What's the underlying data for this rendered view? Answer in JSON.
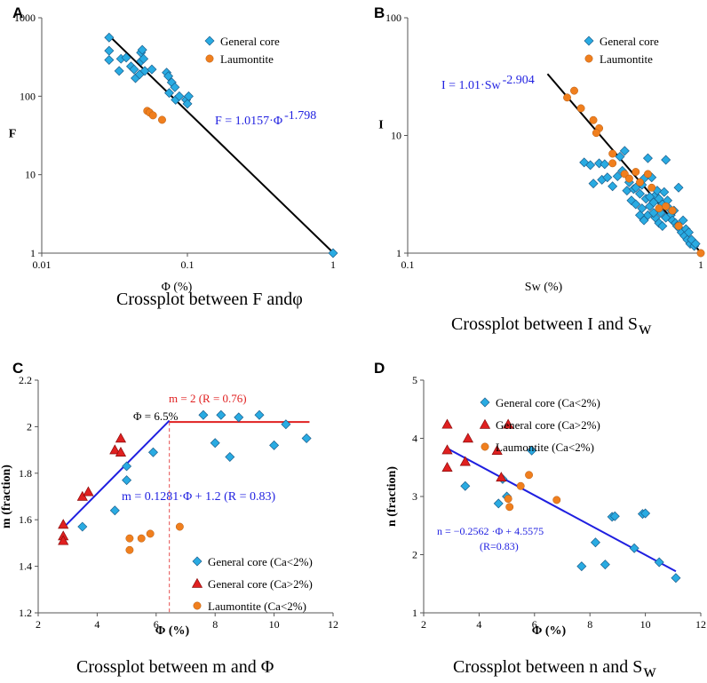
{
  "colors": {
    "general": "#29abe2",
    "general_stroke": "#1b5e8c",
    "laumontite": "#f07f1e",
    "laumontite_stroke": "#b55a10",
    "triangle": "#e02020",
    "triangle_stroke": "#8a0b0b",
    "fit_blue": "#1f1fe0",
    "fit_red": "#e02020",
    "fit_black": "#000000",
    "dashed": "#e02020"
  },
  "chart_data": [
    {
      "id": "A",
      "type": "scatter",
      "panel_letter": "A",
      "caption": "Crossplot between F andφ",
      "xscale": "log",
      "yscale": "log",
      "xlim": [
        0.01,
        1
      ],
      "ylim": [
        1,
        1000
      ],
      "xlabel": "Φ (%)",
      "ylabel": "F",
      "xticks": [
        0.01,
        0.1,
        1
      ],
      "xtick_labels": [
        "0.01",
        "0.1",
        "1"
      ],
      "yticks": [
        1,
        10,
        100,
        1000
      ],
      "ytick_labels": [
        "1",
        "10",
        "100",
        "1000"
      ],
      "series": [
        {
          "name": "General core",
          "marker": "diamond",
          "points": [
            [
              0.029,
              560
            ],
            [
              0.029,
              380
            ],
            [
              0.029,
              290
            ],
            [
              0.035,
              300
            ],
            [
              0.034,
              210
            ],
            [
              0.038,
              310
            ],
            [
              0.041,
              240
            ],
            [
              0.043,
              220
            ],
            [
              0.044,
              170
            ],
            [
              0.047,
              190
            ],
            [
              0.048,
              360
            ],
            [
              0.049,
              390
            ],
            [
              0.048,
              280
            ],
            [
              0.05,
              300
            ],
            [
              0.051,
              210
            ],
            [
              0.057,
              220
            ],
            [
              0.072,
              200
            ],
            [
              0.074,
              180
            ],
            [
              0.078,
              150
            ],
            [
              0.075,
              110
            ],
            [
              0.082,
              130
            ],
            [
              0.083,
              90
            ],
            [
              0.088,
              100
            ],
            [
              0.098,
              90
            ],
            [
              0.1,
              80
            ],
            [
              0.102,
              100
            ],
            [
              1.0,
              1.0
            ]
          ]
        },
        {
          "name": "Laumontite",
          "marker": "circle",
          "points": [
            [
              0.053,
              65
            ],
            [
              0.055,
              62
            ],
            [
              0.058,
              57
            ],
            [
              0.067,
              50
            ]
          ]
        }
      ],
      "fit_lines": [
        {
          "label": "F = 1.0157·Φ",
          "sup": "-1.798",
          "a": 1.0157,
          "b": -1.798,
          "x_range": [
            0.029,
            1.0
          ]
        }
      ],
      "legend": [
        "General core",
        "Laumontite"
      ]
    },
    {
      "id": "B",
      "type": "scatter",
      "panel_letter": "B",
      "caption": "Crossplot between I and S",
      "caption_sub": "w",
      "xscale": "log",
      "yscale": "log",
      "xlim": [
        0.1,
        1
      ],
      "ylim": [
        1,
        100
      ],
      "xlabel": "Sw (%)",
      "ylabel": "I",
      "xticks": [
        0.1,
        1
      ],
      "xtick_labels": [
        "0.1",
        "1"
      ],
      "yticks": [
        1,
        10,
        100
      ],
      "ytick_labels": [
        "1",
        "10",
        "100"
      ],
      "series": [
        {
          "name": "General core",
          "marker": "diamond",
          "points": [
            [
              0.4,
              5.9
            ],
            [
              0.42,
              5.6
            ],
            [
              0.45,
              5.8
            ],
            [
              0.47,
              5.7
            ],
            [
              0.43,
              3.9
            ],
            [
              0.46,
              4.2
            ],
            [
              0.48,
              4.4
            ],
            [
              0.5,
              3.7
            ],
            [
              0.52,
              4.5
            ],
            [
              0.53,
              6.6
            ],
            [
              0.55,
              7.4
            ],
            [
              0.54,
              5.0
            ],
            [
              0.57,
              4.0
            ],
            [
              0.56,
              3.4
            ],
            [
              0.58,
              2.8
            ],
            [
              0.6,
              2.6
            ],
            [
              0.59,
              3.5
            ],
            [
              0.62,
              3.2
            ],
            [
              0.63,
              3.8
            ],
            [
              0.64,
              4.3
            ],
            [
              0.66,
              6.4
            ],
            [
              0.68,
              4.4
            ],
            [
              0.65,
              2.9
            ],
            [
              0.67,
              2.5
            ],
            [
              0.66,
              2.1
            ],
            [
              0.69,
              2.7
            ],
            [
              0.7,
              3.1
            ],
            [
              0.71,
              3.4
            ],
            [
              0.72,
              2.9
            ],
            [
              0.73,
              2.2
            ],
            [
              0.74,
              2.6
            ],
            [
              0.75,
              3.3
            ],
            [
              0.76,
              6.2
            ],
            [
              0.77,
              2.8
            ],
            [
              0.78,
              2.4
            ],
            [
              0.79,
              2.1
            ],
            [
              0.8,
              1.9
            ],
            [
              0.81,
              2.3
            ],
            [
              0.82,
              1.8
            ],
            [
              0.83,
              1.7
            ],
            [
              0.84,
              3.6
            ],
            [
              0.85,
              1.6
            ],
            [
              0.86,
              1.5
            ],
            [
              0.87,
              1.9
            ],
            [
              0.88,
              1.4
            ],
            [
              0.89,
              1.6
            ],
            [
              0.9,
              1.3
            ],
            [
              0.91,
              1.5
            ],
            [
              0.92,
              1.2
            ],
            [
              0.93,
              1.3
            ],
            [
              0.95,
              1.15
            ],
            [
              0.96,
              1.2
            ],
            [
              0.62,
              2.1
            ],
            [
              0.64,
              1.9
            ],
            [
              0.7,
              2.0
            ],
            [
              0.72,
              1.8
            ],
            [
              0.74,
              1.7
            ],
            [
              0.76,
              2.0
            ],
            [
              0.6,
              3.6
            ],
            [
              0.63,
              2.4
            ],
            [
              0.67,
              3.0
            ],
            [
              0.69,
              2.2
            ]
          ]
        },
        {
          "name": "Laumontite",
          "marker": "circle",
          "points": [
            [
              0.35,
              21
            ],
            [
              0.37,
              24
            ],
            [
              0.39,
              17
            ],
            [
              0.43,
              13.5
            ],
            [
              0.45,
              11.5
            ],
            [
              0.44,
              10.5
            ],
            [
              0.5,
              7.0
            ],
            [
              0.5,
              5.8
            ],
            [
              0.55,
              4.7
            ],
            [
              0.57,
              4.3
            ],
            [
              0.6,
              4.9
            ],
            [
              0.62,
              4.0
            ],
            [
              0.66,
              4.7
            ],
            [
              0.68,
              3.6
            ],
            [
              0.72,
              2.4
            ],
            [
              0.76,
              2.5
            ],
            [
              0.8,
              2.3
            ],
            [
              0.84,
              1.7
            ],
            [
              1.0,
              1.0
            ]
          ]
        }
      ],
      "fit_lines": [
        {
          "label": "I = 1.01·Sw",
          "sup": "-2.904",
          "a": 1.01,
          "b": -2.904,
          "x_range": [
            0.3,
            1.0
          ]
        }
      ],
      "legend": [
        "General core",
        "Laumontite"
      ]
    },
    {
      "id": "C",
      "type": "scatter",
      "panel_letter": "C",
      "caption": "Crossplot between m and Φ",
      "xscale": "linear",
      "yscale": "linear",
      "xlim": [
        2,
        12
      ],
      "ylim": [
        1.2,
        2.2
      ],
      "xlabel": "Φ (%)",
      "ylabel": "m (fraction)",
      "xticks": [
        2,
        4,
        6,
        8,
        10,
        12
      ],
      "xtick_labels": [
        "2",
        "4",
        "6",
        "8",
        "10",
        "12"
      ],
      "yticks": [
        1.2,
        1.4,
        1.6,
        1.8,
        2.0,
        2.2
      ],
      "ytick_labels": [
        "1.2",
        "1.4",
        "1.6",
        "1.8",
        "2",
        "2.2"
      ],
      "series": [
        {
          "name": "General core (Ca<2%)",
          "marker": "diamond",
          "points": [
            [
              3.5,
              1.57
            ],
            [
              4.6,
              1.64
            ],
            [
              5.0,
              1.77
            ],
            [
              5.0,
              1.83
            ],
            [
              5.9,
              1.89
            ],
            [
              7.6,
              2.05
            ],
            [
              8.0,
              1.93
            ],
            [
              8.2,
              2.05
            ],
            [
              8.5,
              1.87
            ],
            [
              8.8,
              2.04
            ],
            [
              9.5,
              2.05
            ],
            [
              10.0,
              1.92
            ],
            [
              10.4,
              2.01
            ],
            [
              11.1,
              1.95
            ]
          ]
        },
        {
          "name": "General core (Ca>2%)",
          "marker": "triangle",
          "points": [
            [
              2.85,
              1.58
            ],
            [
              2.85,
              1.53
            ],
            [
              2.85,
              1.51
            ],
            [
              3.5,
              1.7
            ],
            [
              3.7,
              1.72
            ],
            [
              4.6,
              1.9
            ],
            [
              4.8,
              1.95
            ],
            [
              4.8,
              1.89
            ]
          ]
        },
        {
          "name": "Laumontite (Ca<2%)",
          "marker": "circle",
          "points": [
            [
              5.1,
              1.52
            ],
            [
              5.1,
              1.47
            ],
            [
              5.5,
              1.52
            ],
            [
              5.8,
              1.54
            ],
            [
              6.8,
              1.57
            ]
          ]
        }
      ],
      "fit_lines": [
        {
          "label": "m = 0.1281·Φ + 1.2  (R = 0.83)",
          "slope": 0.1281,
          "intercept": 1.2,
          "x_range": [
            2.85,
            6.45
          ],
          "color": "blue"
        },
        {
          "label": "m = 2  (R = 0.76)",
          "slope": 0,
          "intercept": 2.02,
          "x_range": [
            6.45,
            11.2
          ],
          "color": "red"
        }
      ],
      "annotations": {
        "breakpoint_label": "Φ = 6.5%",
        "breakpoint_x": 6.45
      },
      "legend": [
        "General core (Ca<2%)",
        "General core (Ca>2%)",
        "Laumontite (Ca<2%)"
      ]
    },
    {
      "id": "D",
      "type": "scatter",
      "panel_letter": "D",
      "caption": "Crossplot between n and S",
      "caption_sub": "w",
      "xscale": "linear",
      "yscale": "linear",
      "xlim": [
        2,
        12
      ],
      "ylim": [
        1,
        5
      ],
      "xlabel": "Φ (%)",
      "ylabel": "n (fraction)",
      "xticks": [
        2,
        4,
        6,
        8,
        10,
        12
      ],
      "xtick_labels": [
        "2",
        "4",
        "6",
        "8",
        "10",
        "12"
      ],
      "yticks": [
        1,
        2,
        3,
        4,
        5
      ],
      "ytick_labels": [
        "1",
        "2",
        "3",
        "4",
        "5"
      ],
      "series": [
        {
          "name": "General core (Ca<2%)",
          "marker": "diamond",
          "points": [
            [
              3.5,
              3.18
            ],
            [
              4.7,
              2.88
            ],
            [
              4.85,
              3.3
            ],
            [
              5.0,
              3.0
            ],
            [
              5.9,
              3.79
            ],
            [
              7.7,
              1.8
            ],
            [
              8.2,
              2.21
            ],
            [
              8.55,
              1.83
            ],
            [
              8.8,
              2.65
            ],
            [
              8.9,
              2.66
            ],
            [
              9.6,
              2.11
            ],
            [
              9.9,
              2.7
            ],
            [
              10.0,
              2.71
            ],
            [
              10.5,
              1.87
            ],
            [
              11.1,
              1.6
            ]
          ]
        },
        {
          "name": "General core (Ca>2%)",
          "marker": "triangle",
          "points": [
            [
              2.85,
              4.24
            ],
            [
              2.85,
              3.8
            ],
            [
              2.85,
              3.5
            ],
            [
              3.5,
              3.6
            ],
            [
              3.6,
              4.0
            ],
            [
              4.65,
              3.79
            ],
            [
              4.8,
              3.33
            ],
            [
              5.05,
              4.24
            ]
          ]
        },
        {
          "name": "Laumontite (Ca<2%)",
          "marker": "circle",
          "points": [
            [
              5.05,
              2.96
            ],
            [
              5.1,
              2.82
            ],
            [
              5.5,
              3.18
            ],
            [
              5.8,
              3.37
            ],
            [
              6.8,
              2.94
            ]
          ]
        }
      ],
      "fit_lines": [
        {
          "label": "n = −0.2562 ·Φ + 4.5575",
          "label2": "(R=0.83)",
          "slope": -0.2562,
          "intercept": 4.5575,
          "x_range": [
            2.85,
            11.1
          ],
          "color": "blue"
        }
      ],
      "legend": [
        "General core (Ca<2%)",
        "General core (Ca>2%)",
        "Laumontite (Ca<2%)"
      ]
    }
  ]
}
